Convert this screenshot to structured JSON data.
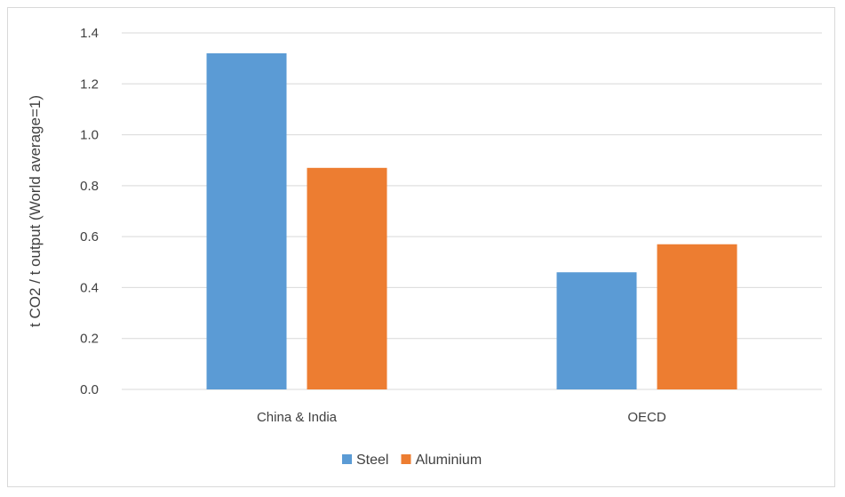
{
  "chart_data": {
    "type": "bar",
    "title": "",
    "xlabel": "",
    "ylabel": "t CO2 / t output (World average=1)",
    "categories": [
      "China & India",
      "OECD"
    ],
    "series": [
      {
        "name": "Steel",
        "color": "#5b9bd5",
        "values": [
          1.32,
          0.46
        ]
      },
      {
        "name": "Aluminium",
        "color": "#ed7d31",
        "values": [
          0.87,
          0.57
        ]
      }
    ],
    "ylim": [
      0,
      1.4
    ],
    "yticks": [
      0.0,
      0.2,
      0.4,
      0.6,
      0.8,
      1.0,
      1.2,
      1.4
    ],
    "ytick_labels": [
      "0.0",
      "0.2",
      "0.4",
      "0.6",
      "0.8",
      "1.0",
      "1.2",
      "1.4"
    ],
    "grid": true,
    "gridline_color": "#d9d9d9",
    "legend_position": "bottom"
  }
}
